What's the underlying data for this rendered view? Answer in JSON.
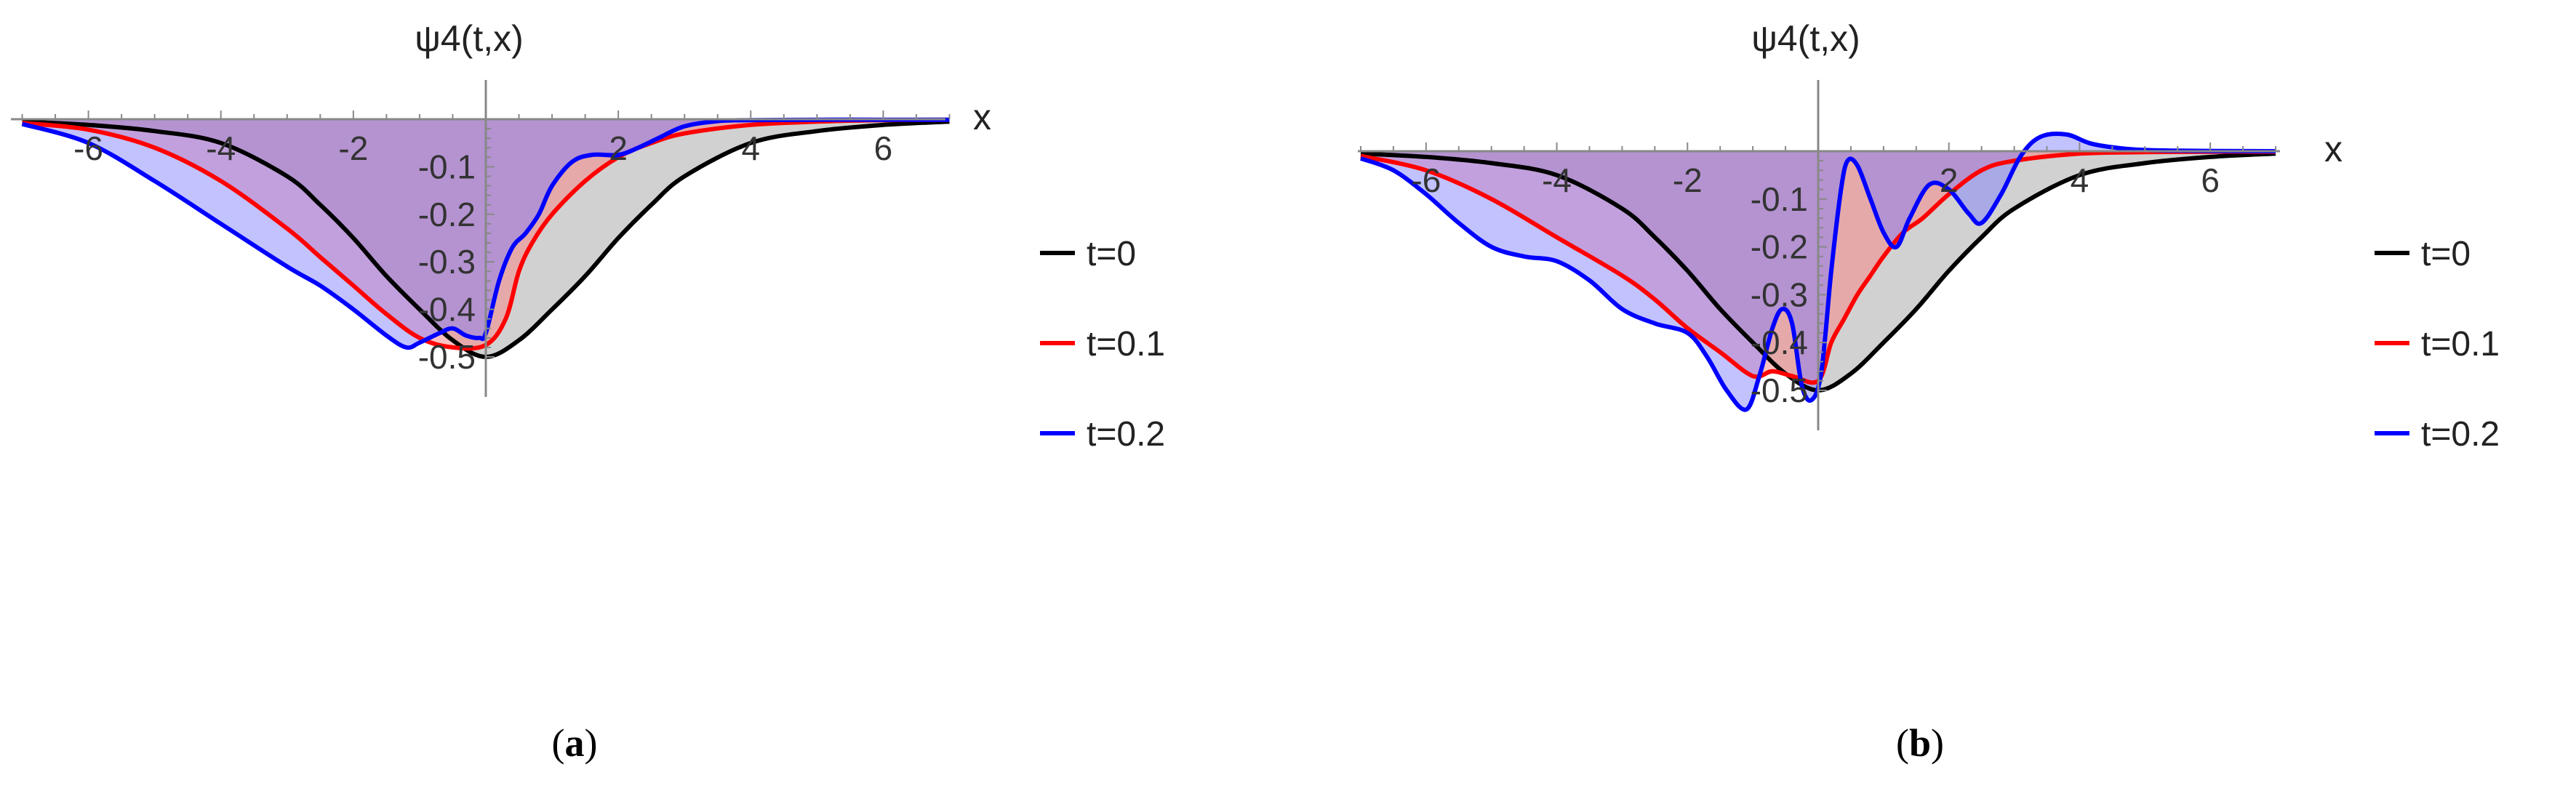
{
  "panels": [
    {
      "caption": "(a)",
      "caption_letter": "a"
    },
    {
      "caption": "(b)",
      "caption_letter": "b"
    }
  ],
  "chart_data": [
    {
      "type": "area",
      "ylabel": "ψ4(t,x)",
      "xlabel": "x",
      "xlim": [
        -7,
        7
      ],
      "ylim": [
        -0.5,
        0
      ],
      "x_ticks": [
        -6,
        -4,
        -2,
        2,
        4,
        6
      ],
      "x_tick_labels": [
        "-6",
        "-4",
        "-2",
        "2",
        "4",
        "6"
      ],
      "y_ticks": [
        -0.1,
        -0.2,
        -0.3,
        -0.4,
        -0.5
      ],
      "y_tick_labels": [
        "-0.1",
        "-0.2",
        "-0.3",
        "-0.4",
        "-0.5"
      ],
      "legend_position": "right",
      "series": [
        {
          "name": "t=0",
          "color": "#000000",
          "fill": "#9a9a9a",
          "points": [
            [
              -7,
              -0.005
            ],
            [
              -6,
              -0.012
            ],
            [
              -5,
              -0.025
            ],
            [
              -4,
              -0.05
            ],
            [
              -3,
              -0.12
            ],
            [
              -2.5,
              -0.18
            ],
            [
              -2,
              -0.25
            ],
            [
              -1.5,
              -0.33
            ],
            [
              -1,
              -0.4
            ],
            [
              -0.5,
              -0.465
            ],
            [
              0,
              -0.5
            ],
            [
              0.5,
              -0.465
            ],
            [
              1,
              -0.4
            ],
            [
              1.5,
              -0.33
            ],
            [
              2,
              -0.25
            ],
            [
              2.5,
              -0.18
            ],
            [
              3,
              -0.12
            ],
            [
              4,
              -0.05
            ],
            [
              5,
              -0.025
            ],
            [
              6,
              -0.012
            ],
            [
              7,
              -0.005
            ]
          ]
        },
        {
          "name": "t=0.1",
          "color": "#ff0000",
          "fill": "#ff7777",
          "points": [
            [
              -7,
              -0.008
            ],
            [
              -6,
              -0.022
            ],
            [
              -5,
              -0.06
            ],
            [
              -4,
              -0.13
            ],
            [
              -3,
              -0.23
            ],
            [
              -2.5,
              -0.29
            ],
            [
              -2,
              -0.35
            ],
            [
              -1.5,
              -0.41
            ],
            [
              -1,
              -0.46
            ],
            [
              -0.5,
              -0.48
            ],
            [
              0,
              -0.475
            ],
            [
              0.3,
              -0.42
            ],
            [
              0.5,
              -0.32
            ],
            [
              0.7,
              -0.26
            ],
            [
              1,
              -0.2
            ],
            [
              1.5,
              -0.13
            ],
            [
              2,
              -0.08
            ],
            [
              2.5,
              -0.05
            ],
            [
              3,
              -0.03
            ],
            [
              4,
              -0.012
            ],
            [
              5,
              -0.005
            ],
            [
              6,
              -0.002
            ],
            [
              7,
              -0.001
            ]
          ]
        },
        {
          "name": "t=0.2",
          "color": "#0000ff",
          "fill": "#7777ff",
          "points": [
            [
              -7,
              -0.01
            ],
            [
              -6,
              -0.05
            ],
            [
              -5,
              -0.13
            ],
            [
              -4,
              -0.22
            ],
            [
              -3,
              -0.31
            ],
            [
              -2.5,
              -0.35
            ],
            [
              -2,
              -0.4
            ],
            [
              -1.5,
              -0.455
            ],
            [
              -1.2,
              -0.48
            ],
            [
              -1,
              -0.47
            ],
            [
              -0.7,
              -0.45
            ],
            [
              -0.5,
              -0.44
            ],
            [
              -0.3,
              -0.455
            ],
            [
              -0.1,
              -0.46
            ],
            [
              0,
              -0.45
            ],
            [
              0.2,
              -0.34
            ],
            [
              0.4,
              -0.27
            ],
            [
              0.6,
              -0.24
            ],
            [
              0.8,
              -0.2
            ],
            [
              1,
              -0.14
            ],
            [
              1.3,
              -0.09
            ],
            [
              1.6,
              -0.075
            ],
            [
              2,
              -0.075
            ],
            [
              2.3,
              -0.06
            ],
            [
              2.6,
              -0.04
            ],
            [
              3,
              -0.015
            ],
            [
              3.5,
              -0.004
            ],
            [
              4,
              -0.002
            ],
            [
              5,
              -0.001
            ],
            [
              6,
              -0.001
            ],
            [
              7,
              -0.001
            ]
          ]
        }
      ]
    },
    {
      "type": "area",
      "ylabel": "ψ4(t,x)",
      "xlabel": "x",
      "xlim": [
        -7,
        7
      ],
      "ylim": [
        -0.5,
        0
      ],
      "x_ticks": [
        -6,
        -4,
        -2,
        2,
        4,
        6
      ],
      "x_tick_labels": [
        "-6",
        "-4",
        "-2",
        "2",
        "4",
        "6"
      ],
      "y_ticks": [
        -0.1,
        -0.2,
        -0.3,
        -0.4,
        -0.5
      ],
      "y_tick_labels": [
        "-0.1",
        "-0.2",
        "-0.3",
        "-0.4",
        "-0.5"
      ],
      "legend_position": "right",
      "series": [
        {
          "name": "t=0",
          "color": "#000000",
          "fill": "#9a9a9a",
          "points": [
            [
              -7,
              -0.005
            ],
            [
              -6,
              -0.012
            ],
            [
              -5,
              -0.025
            ],
            [
              -4,
              -0.05
            ],
            [
              -3,
              -0.12
            ],
            [
              -2.5,
              -0.18
            ],
            [
              -2,
              -0.25
            ],
            [
              -1.5,
              -0.33
            ],
            [
              -1,
              -0.4
            ],
            [
              -0.5,
              -0.465
            ],
            [
              0,
              -0.5
            ],
            [
              0.5,
              -0.465
            ],
            [
              1,
              -0.4
            ],
            [
              1.5,
              -0.33
            ],
            [
              2,
              -0.25
            ],
            [
              2.5,
              -0.18
            ],
            [
              3,
              -0.12
            ],
            [
              4,
              -0.05
            ],
            [
              5,
              -0.025
            ],
            [
              6,
              -0.012
            ],
            [
              7,
              -0.005
            ]
          ]
        },
        {
          "name": "t=0.1",
          "color": "#ff0000",
          "fill": "#ff7777",
          "points": [
            [
              -7,
              -0.01
            ],
            [
              -6,
              -0.04
            ],
            [
              -5,
              -0.1
            ],
            [
              -4,
              -0.18
            ],
            [
              -3,
              -0.26
            ],
            [
              -2.5,
              -0.31
            ],
            [
              -2,
              -0.37
            ],
            [
              -1.5,
              -0.42
            ],
            [
              -1,
              -0.47
            ],
            [
              -0.7,
              -0.46
            ],
            [
              -0.4,
              -0.47
            ],
            [
              0,
              -0.48
            ],
            [
              0.2,
              -0.4
            ],
            [
              0.4,
              -0.35
            ],
            [
              0.6,
              -0.3
            ],
            [
              0.8,
              -0.26
            ],
            [
              1,
              -0.22
            ],
            [
              1.3,
              -0.17
            ],
            [
              1.6,
              -0.14
            ],
            [
              2,
              -0.09
            ],
            [
              2.5,
              -0.04
            ],
            [
              3,
              -0.02
            ],
            [
              4,
              -0.005
            ],
            [
              5,
              -0.002
            ],
            [
              6,
              -0.001
            ],
            [
              7,
              -0.001
            ]
          ]
        },
        {
          "name": "t=0.2",
          "color": "#0000ff",
          "fill": "#7777ff",
          "points": [
            [
              -7,
              -0.015
            ],
            [
              -6.5,
              -0.04
            ],
            [
              -6,
              -0.09
            ],
            [
              -5.5,
              -0.15
            ],
            [
              -5,
              -0.2
            ],
            [
              -4.5,
              -0.22
            ],
            [
              -4,
              -0.23
            ],
            [
              -3.5,
              -0.27
            ],
            [
              -3,
              -0.33
            ],
            [
              -2.5,
              -0.36
            ],
            [
              -2,
              -0.38
            ],
            [
              -1.7,
              -0.43
            ],
            [
              -1.4,
              -0.5
            ],
            [
              -1.1,
              -0.54
            ],
            [
              -0.9,
              -0.47
            ],
            [
              -0.7,
              -0.37
            ],
            [
              -0.55,
              -0.33
            ],
            [
              -0.4,
              -0.36
            ],
            [
              -0.25,
              -0.49
            ],
            [
              -0.1,
              -0.52
            ],
            [
              0.05,
              -0.46
            ],
            [
              0.2,
              -0.25
            ],
            [
              0.35,
              -0.08
            ],
            [
              0.45,
              -0.02
            ],
            [
              0.6,
              -0.03
            ],
            [
              0.8,
              -0.1
            ],
            [
              1,
              -0.17
            ],
            [
              1.2,
              -0.2
            ],
            [
              1.4,
              -0.14
            ],
            [
              1.7,
              -0.07
            ],
            [
              2,
              -0.08
            ],
            [
              2.3,
              -0.13
            ],
            [
              2.5,
              -0.15
            ],
            [
              2.8,
              -0.09
            ],
            [
              3.1,
              -0.01
            ],
            [
              3.4,
              0.03
            ],
            [
              3.8,
              0.035
            ],
            [
              4.2,
              0.015
            ],
            [
              4.8,
              0.004
            ],
            [
              5.5,
              0.001
            ],
            [
              7,
              0.0
            ]
          ]
        }
      ]
    }
  ]
}
